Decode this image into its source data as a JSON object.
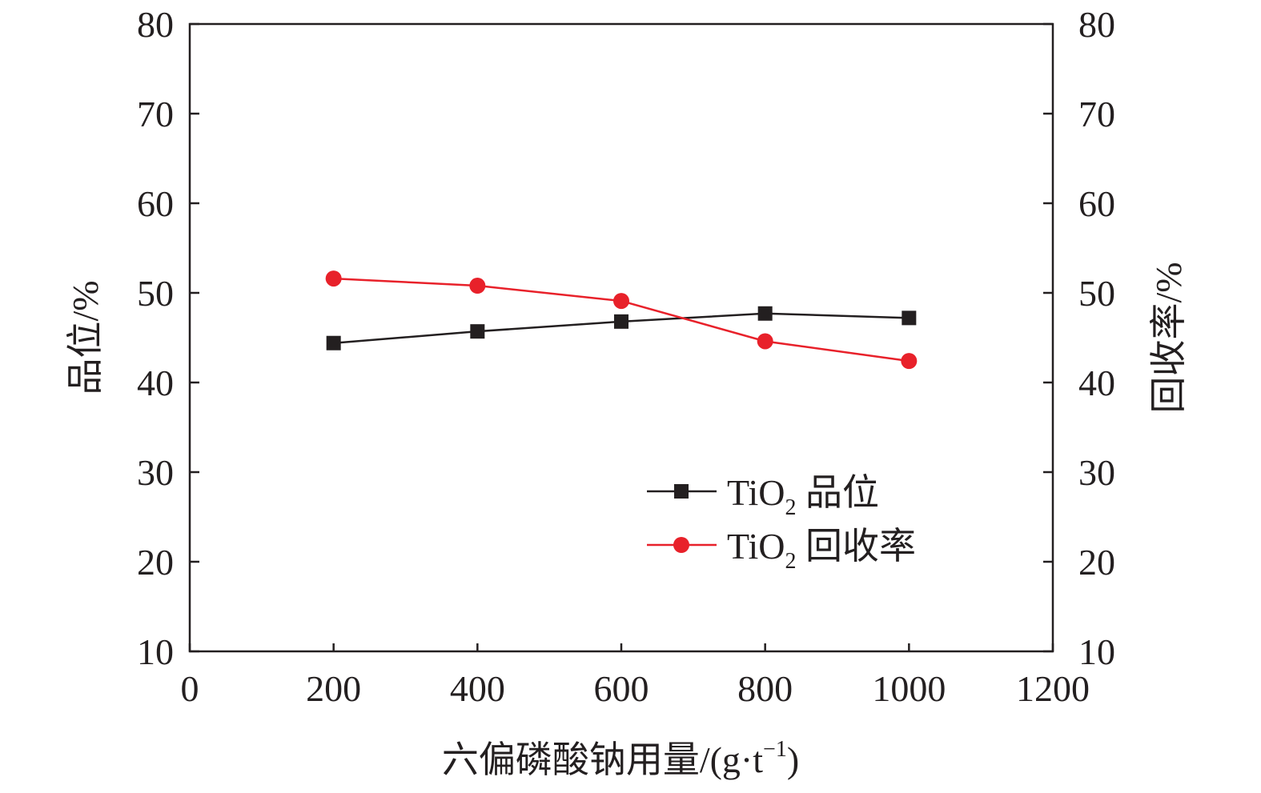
{
  "chart_data": {
    "type": "line",
    "xlabel": "六偏磷酸钠用量/(g·t",
    "xlabel_sup": "−1",
    "xlabel_close": ")",
    "ylabel_left": "品位/%",
    "ylabel_right": "回收率/%",
    "xlim": [
      0,
      1200
    ],
    "ylim": [
      10,
      80
    ],
    "ylim_right": [
      10,
      80
    ],
    "x_ticks": [
      "0",
      "200",
      "400",
      "600",
      "800",
      "1000",
      "1200"
    ],
    "y_ticks": [
      "10",
      "20",
      "30",
      "40",
      "50",
      "60",
      "70",
      "80"
    ],
    "grid": false,
    "legend_position": "lower-right",
    "x": [
      200,
      400,
      600,
      800,
      1000
    ],
    "series": [
      {
        "name_main": "TiO",
        "name_sub": "2",
        "name_rest": " 品位",
        "axis": "left",
        "marker": "square",
        "color": "#231f20",
        "values": [
          44.4,
          45.7,
          46.8,
          47.7,
          47.2
        ]
      },
      {
        "name_main": "TiO",
        "name_sub": "2",
        "name_rest": " 回收率",
        "axis": "right",
        "marker": "circle",
        "color": "#e8212a",
        "values": [
          51.6,
          50.8,
          49.1,
          44.6,
          42.4
        ]
      }
    ]
  }
}
